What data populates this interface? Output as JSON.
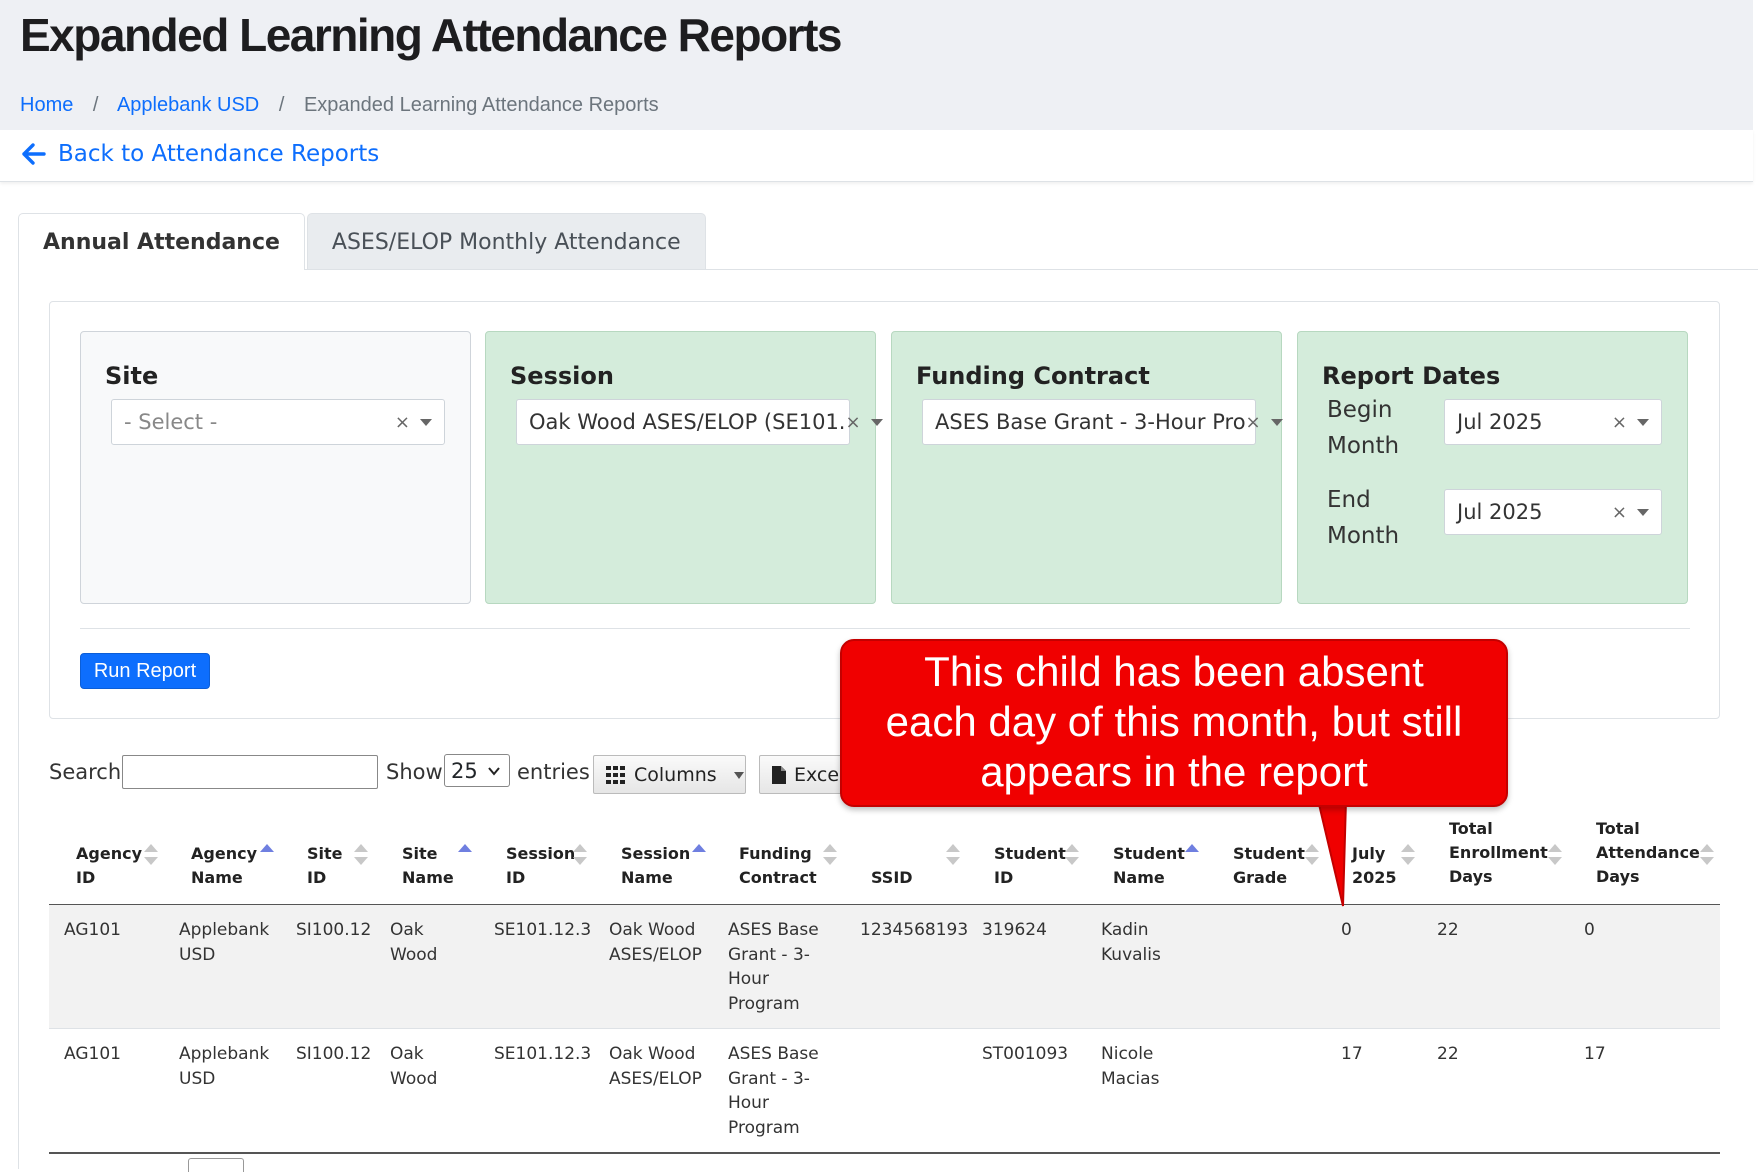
{
  "header": {
    "title": "Expanded Learning Attendance Reports",
    "breadcrumb": [
      {
        "label": "Home"
      },
      {
        "label": "Applebank USD"
      },
      {
        "label": "Expanded Learning Attendance Reports"
      }
    ],
    "back_label": "Back to Attendance Reports"
  },
  "tabs": [
    {
      "label": "Annual Attendance",
      "active": true
    },
    {
      "label": "ASES/ELOP Monthly Attendance",
      "active": false
    }
  ],
  "filters": {
    "site": {
      "title": "Site",
      "value": "- Select -"
    },
    "session": {
      "title": "Session",
      "value": "Oak Wood ASES/ELOP (SE101."
    },
    "funding": {
      "title": "Funding Contract",
      "value": "ASES Base Grant - 3-Hour Pro"
    },
    "dates": {
      "title": "Report Dates",
      "begin_label_1": "Begin",
      "begin_label_2": "Month",
      "begin_value": "Jul 2025",
      "end_label_1": "End",
      "end_label_2": "Month",
      "end_value": "Jul 2025"
    },
    "run_label": "Run Report"
  },
  "toolbar": {
    "search_label": "Search:",
    "show_label": "Show",
    "page_size": "25",
    "entries_label": "entries",
    "columns_label": "Columns",
    "excel_label": "Excel"
  },
  "annotation": {
    "line1": "This child has been absent",
    "line2": "each day of this month, but still",
    "line3": "appears in the report"
  },
  "table": {
    "columns": [
      {
        "l1": "Agency",
        "l2": "ID",
        "sort": "none"
      },
      {
        "l1": "Agency",
        "l2": "Name",
        "sort": "asc"
      },
      {
        "l1": "Site",
        "l2": "ID",
        "sort": "none"
      },
      {
        "l1": "Site",
        "l2": "Name",
        "sort": "asc"
      },
      {
        "l1": "Session",
        "l2": "ID",
        "sort": "none"
      },
      {
        "l1": "Session",
        "l2": "Name",
        "sort": "asc"
      },
      {
        "l1": "Funding",
        "l2": "Contract",
        "sort": "none"
      },
      {
        "l1": "",
        "l2": "SSID",
        "sort": "none"
      },
      {
        "l1": "Student",
        "l2": "ID",
        "sort": "none"
      },
      {
        "l1": "Student",
        "l2": "Name",
        "sort": "asc"
      },
      {
        "l1": "Student",
        "l2": "Grade",
        "sort": "none"
      },
      {
        "l1": "July",
        "l2": "2025",
        "sort": "none"
      },
      {
        "l0": "Total",
        "l1": "Enrollment",
        "l2": "Days",
        "sort": "none"
      },
      {
        "l0": "Total",
        "l1": "Attendance",
        "l2": "Days",
        "sort": "none"
      }
    ],
    "rows": [
      {
        "agency_id": "AG101",
        "agency_name_1": "Applebank",
        "agency_name_2": "USD",
        "site_id": "SI100.12",
        "site_name_1": "Oak",
        "site_name_2": "Wood",
        "session_id": "SE101.12.3",
        "session_name_1": "Oak Wood",
        "session_name_2": "ASES/ELOP",
        "funding_1": "ASES Base",
        "funding_2": "Grant - 3-",
        "funding_3": "Hour",
        "funding_4": "Program",
        "ssid": "1234568193",
        "student_id": "319624",
        "student_name_1": "Kadin",
        "student_name_2": "Kuvalis",
        "grade": "",
        "july": "0",
        "enroll_days": "22",
        "attend_days": "0"
      },
      {
        "agency_id": "AG101",
        "agency_name_1": "Applebank",
        "agency_name_2": "USD",
        "site_id": "SI100.12",
        "site_name_1": "Oak",
        "site_name_2": "Wood",
        "session_id": "SE101.12.3",
        "session_name_1": "Oak Wood",
        "session_name_2": "ASES/ELOP",
        "funding_1": "ASES Base",
        "funding_2": "Grant - 3-",
        "funding_3": "Hour",
        "funding_4": "Program",
        "ssid": "",
        "student_id": "ST001093",
        "student_name_1": "Nicole",
        "student_name_2": "Macias",
        "grade": "",
        "july": "17",
        "enroll_days": "22",
        "attend_days": "17"
      }
    ]
  },
  "colors": {
    "link": "#0d6efd",
    "primary_button": "#0d6efd",
    "green_panel": "#d4ecdb",
    "annotation": "#f00000"
  }
}
